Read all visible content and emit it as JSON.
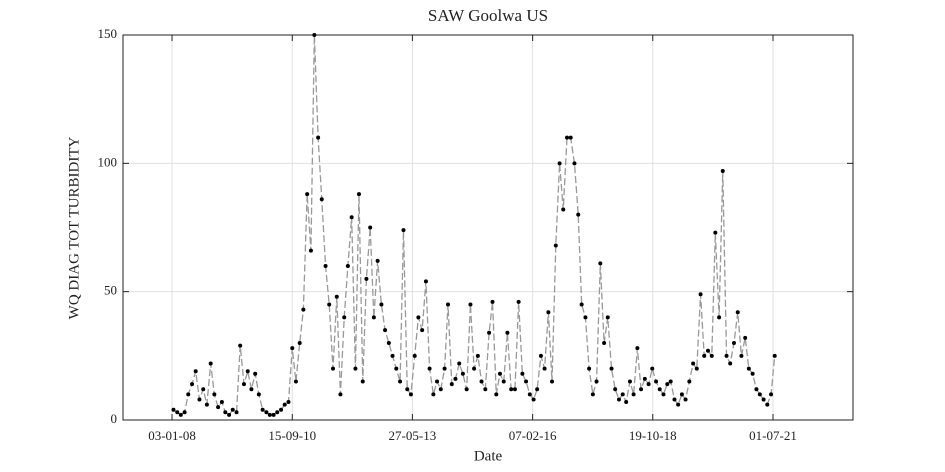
{
  "chart_data": {
    "type": "line",
    "title": "SAW Goolwa US",
    "xlabel": "Date",
    "ylabel": "WQ DIAG TOT TURBIDITY",
    "x": [
      "15-01-08",
      "15-02-08",
      "15-03-08",
      "15-04-08",
      "15-05-08",
      "15-06-08",
      "15-07-08",
      "15-08-08",
      "15-09-08",
      "15-10-08",
      "15-11-08",
      "15-12-08",
      "15-01-09",
      "15-02-09",
      "15-03-09",
      "15-04-09",
      "15-05-09",
      "15-06-09",
      "15-07-09",
      "15-08-09",
      "15-09-09",
      "15-10-09",
      "15-11-09",
      "15-12-09",
      "15-01-10",
      "15-02-10",
      "15-03-10",
      "15-04-10",
      "15-05-10",
      "15-06-10",
      "15-07-10",
      "15-08-10",
      "15-09-10",
      "15-10-10",
      "15-11-10",
      "15-12-10",
      "15-01-11",
      "15-02-11",
      "15-03-11",
      "15-04-11",
      "15-05-11",
      "15-06-11",
      "15-07-11",
      "15-08-11",
      "15-09-11",
      "15-10-11",
      "15-11-11",
      "15-12-11",
      "15-01-12",
      "15-02-12",
      "15-03-12",
      "15-04-12",
      "15-05-12",
      "15-06-12",
      "15-07-12",
      "15-08-12",
      "15-09-12",
      "15-10-12",
      "15-11-12",
      "15-12-12",
      "15-01-13",
      "15-02-13",
      "15-03-13",
      "15-04-13",
      "15-05-13",
      "15-06-13",
      "15-07-13",
      "15-08-13",
      "15-09-13",
      "15-10-13",
      "15-11-13",
      "15-12-13",
      "15-01-14",
      "15-02-14",
      "15-03-14",
      "15-04-14",
      "15-05-14",
      "15-06-14",
      "15-07-14",
      "15-08-14",
      "15-09-14",
      "15-10-14",
      "15-11-14",
      "15-12-14",
      "15-01-15",
      "15-02-15",
      "15-03-15",
      "15-04-15",
      "15-05-15",
      "15-06-15",
      "15-07-15",
      "15-08-15",
      "15-09-15",
      "15-10-15",
      "15-11-15",
      "15-12-15",
      "15-01-16",
      "15-02-16",
      "15-03-16",
      "15-04-16",
      "15-05-16",
      "15-06-16",
      "15-07-16",
      "15-08-16",
      "15-09-16",
      "15-10-16",
      "15-11-16",
      "15-12-16",
      "15-01-17",
      "15-02-17",
      "15-03-17",
      "15-04-17",
      "15-05-17",
      "15-06-17",
      "15-07-17",
      "15-08-17",
      "15-09-17",
      "15-10-17",
      "15-11-17",
      "15-12-17",
      "15-01-18",
      "15-02-18",
      "15-03-18",
      "15-04-18",
      "15-05-18",
      "15-06-18",
      "15-07-18",
      "15-08-18",
      "15-09-18",
      "15-10-18",
      "15-11-18",
      "15-12-18",
      "15-01-19",
      "15-02-19",
      "15-03-19",
      "15-04-19",
      "15-05-19",
      "15-06-19",
      "15-07-19",
      "15-08-19",
      "15-09-19",
      "15-10-19",
      "15-11-19",
      "15-12-19",
      "15-01-20",
      "15-02-20",
      "15-03-20",
      "15-04-20",
      "15-05-20",
      "15-06-20",
      "15-07-20",
      "15-08-20",
      "15-09-20",
      "15-10-20",
      "15-11-20",
      "15-12-20",
      "15-01-21",
      "15-02-21",
      "15-03-21",
      "15-04-21",
      "15-05-21",
      "15-06-21",
      "15-07-21"
    ],
    "values": [
      4,
      3,
      2,
      3,
      10,
      14,
      19,
      8,
      12,
      6,
      22,
      10,
      5,
      7,
      3,
      2,
      4,
      3,
      29,
      14,
      19,
      12,
      18,
      10,
      4,
      3,
      2,
      2,
      3,
      4,
      6,
      7,
      28,
      15,
      30,
      43,
      88,
      66,
      150,
      110,
      86,
      60,
      45,
      20,
      48,
      10,
      40,
      60,
      79,
      20,
      88,
      15,
      55,
      75,
      40,
      62,
      45,
      35,
      30,
      25,
      20,
      15,
      74,
      12,
      10,
      25,
      40,
      35,
      54,
      20,
      10,
      15,
      12,
      20,
      45,
      14,
      16,
      22,
      18,
      12,
      45,
      20,
      25,
      15,
      12,
      34,
      46,
      10,
      18,
      15,
      34,
      12,
      12,
      46,
      18,
      15,
      10,
      8,
      12,
      25,
      20,
      42,
      15,
      68,
      100,
      82,
      110,
      110,
      100,
      80,
      45,
      40,
      20,
      10,
      15,
      61,
      30,
      40,
      20,
      12,
      8,
      10,
      7,
      15,
      10,
      28,
      12,
      16,
      14,
      20,
      15,
      12,
      10,
      14,
      15,
      8,
      6,
      10,
      8,
      15,
      22,
      20,
      49,
      25,
      27,
      25,
      73,
      40,
      97,
      25,
      22,
      30,
      42,
      25,
      32,
      20,
      18,
      12,
      10,
      8,
      6,
      10,
      25
    ],
    "color": "#000000",
    "line_color": "#999999",
    "xlim": [
      "27-11-06",
      "18-04-23"
    ],
    "xticks": [
      "03-01-08",
      "15-09-10",
      "27-05-13",
      "07-02-16",
      "19-10-18",
      "01-07-21"
    ],
    "ylim": [
      0,
      150
    ],
    "yticks": [
      0,
      50,
      100,
      150
    ],
    "grid": true
  }
}
